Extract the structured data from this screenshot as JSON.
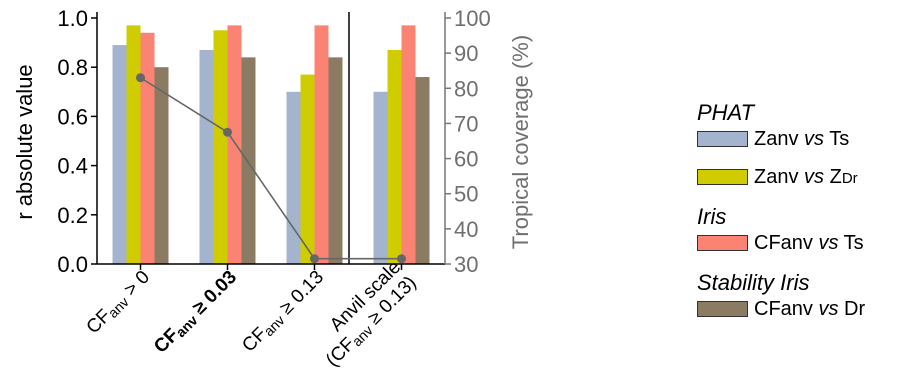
{
  "chart_data": {
    "type": "bar",
    "categories": [
      {
        "main": "CF",
        "sub": "anv",
        "rest": " > 0",
        "bold": false
      },
      {
        "main": "CF",
        "sub": "anv",
        "rest": " ≥ 0.03",
        "bold": true
      },
      {
        "main": "CF",
        "sub": "anv",
        "rest": " ≥ 0.13",
        "bold": false
      },
      {
        "line1": "Anvil scale",
        "line2_pre": "(CF",
        "line2_sub": "anv",
        "line2_post": " ≥ 0.13)",
        "bold": false
      }
    ],
    "series": [
      {
        "name": "Zanv vs Ts",
        "color": "#a4b4cf",
        "values": [
          0.89,
          0.87,
          0.7,
          0.7
        ]
      },
      {
        "name": "Zanv vs ZDr",
        "color": "#cfcc02",
        "values": [
          0.97,
          0.95,
          0.77,
          0.87
        ]
      },
      {
        "name": "CFanv vs Ts",
        "color": "#fb8374",
        "values": [
          0.94,
          0.97,
          0.97,
          0.97
        ]
      },
      {
        "name": "CFanv vs Dr",
        "color": "#8b7b62",
        "values": [
          0.8,
          0.84,
          0.84,
          0.76
        ]
      }
    ],
    "secondary_line": {
      "name": "Tropical coverage",
      "color": "#666666",
      "values": [
        83,
        67.5,
        31.5,
        31.5
      ]
    },
    "ylabel": "r absolute value",
    "ylim": [
      0.0,
      1.0
    ],
    "yticks": [
      "0.0",
      "0.2",
      "0.4",
      "0.6",
      "0.8",
      "1.0"
    ],
    "y2label": "Tropical coverage (%)",
    "y2lim": [
      30,
      100
    ],
    "y2ticks": [
      "30",
      "40",
      "50",
      "60",
      "70",
      "80",
      "90",
      "100"
    ],
    "separator_after_category": 3,
    "legend_position": "right"
  },
  "legend": {
    "groups": [
      {
        "title": "PHAT",
        "items": [
          {
            "pre": "Zanv ",
            "it": "vs",
            "post": " Ts",
            "sub": "",
            "color": "#a4b4cf"
          },
          {
            "pre": "Zanv ",
            "it": "vs",
            "post": " Z",
            "sub": "Dr",
            "color": "#cfcc02"
          }
        ]
      },
      {
        "title": "Iris",
        "items": [
          {
            "pre": "CFanv ",
            "it": "vs",
            "post": " Ts",
            "sub": "",
            "color": "#fb8374"
          }
        ]
      },
      {
        "title": "Stability Iris",
        "items": [
          {
            "pre": "CFanv ",
            "it": "vs",
            "post": " Dr",
            "sub": "",
            "color": "#8b7b62"
          }
        ]
      }
    ]
  }
}
